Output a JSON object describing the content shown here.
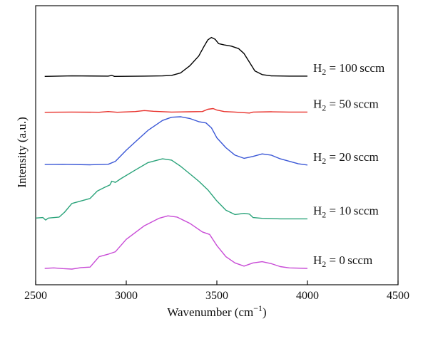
{
  "chart_data": {
    "type": "line",
    "title": "",
    "xlabel": "Wavenumber (cm−1)",
    "xlabel_main": "Wavenumber (cm",
    "xlabel_sup": "−1",
    "xlabel_close": ")",
    "ylabel": "Intensity (a.u.)",
    "xlim": [
      2500,
      4500
    ],
    "ylim": [
      0,
      1
    ],
    "xticks": [
      "2500",
      "3000",
      "3500",
      "4000",
      "4500"
    ],
    "yticks_shown": false,
    "grid": false,
    "legend": "labels at right end of each curve",
    "series": [
      {
        "name": "H2 = 100 sccm",
        "label_main": "H",
        "label_sub": "2",
        "label_rest": " = 100 sccm",
        "color": "#000000",
        "points": [
          [
            2550,
            0.778
          ],
          [
            2700,
            0.78
          ],
          [
            2900,
            0.779
          ],
          [
            2920,
            0.782
          ],
          [
            2935,
            0.778
          ],
          [
            3100,
            0.779
          ],
          [
            3200,
            0.78
          ],
          [
            3250,
            0.782
          ],
          [
            3300,
            0.792
          ],
          [
            3350,
            0.82
          ],
          [
            3400,
            0.86
          ],
          [
            3430,
            0.9
          ],
          [
            3450,
            0.925
          ],
          [
            3470,
            0.935
          ],
          [
            3490,
            0.928
          ],
          [
            3510,
            0.91
          ],
          [
            3540,
            0.905
          ],
          [
            3580,
            0.9
          ],
          [
            3620,
            0.89
          ],
          [
            3650,
            0.87
          ],
          [
            3680,
            0.835
          ],
          [
            3710,
            0.8
          ],
          [
            3750,
            0.785
          ],
          [
            3800,
            0.78
          ],
          [
            3900,
            0.779
          ],
          [
            4000,
            0.779
          ]
        ]
      },
      {
        "name": "H2 = 50 sccm",
        "label_main": "H",
        "label_sub": "2",
        "label_rest": " = 50 sccm",
        "color": "#e8302a",
        "points": [
          [
            2550,
            0.633
          ],
          [
            2700,
            0.634
          ],
          [
            2850,
            0.633
          ],
          [
            2900,
            0.636
          ],
          [
            2950,
            0.633
          ],
          [
            3050,
            0.636
          ],
          [
            3100,
            0.64
          ],
          [
            3150,
            0.637
          ],
          [
            3250,
            0.634
          ],
          [
            3350,
            0.635
          ],
          [
            3420,
            0.636
          ],
          [
            3450,
            0.645
          ],
          [
            3480,
            0.648
          ],
          [
            3500,
            0.642
          ],
          [
            3540,
            0.636
          ],
          [
            3600,
            0.634
          ],
          [
            3680,
            0.63
          ],
          [
            3700,
            0.634
          ],
          [
            3800,
            0.635
          ],
          [
            3900,
            0.634
          ],
          [
            4000,
            0.634
          ]
        ]
      },
      {
        "name": "H2 = 20 sccm",
        "label_main": "H",
        "label_sub": "2",
        "label_rest": " = 20 sccm",
        "color": "#3a57d6",
        "points": [
          [
            2550,
            0.422
          ],
          [
            2650,
            0.423
          ],
          [
            2800,
            0.421
          ],
          [
            2900,
            0.423
          ],
          [
            2940,
            0.435
          ],
          [
            3000,
            0.48
          ],
          [
            3060,
            0.52
          ],
          [
            3120,
            0.56
          ],
          [
            3200,
            0.6
          ],
          [
            3250,
            0.613
          ],
          [
            3300,
            0.615
          ],
          [
            3350,
            0.608
          ],
          [
            3400,
            0.595
          ],
          [
            3440,
            0.59
          ],
          [
            3470,
            0.57
          ],
          [
            3500,
            0.53
          ],
          [
            3550,
            0.49
          ],
          [
            3600,
            0.46
          ],
          [
            3650,
            0.447
          ],
          [
            3700,
            0.455
          ],
          [
            3750,
            0.465
          ],
          [
            3800,
            0.46
          ],
          [
            3850,
            0.445
          ],
          [
            3900,
            0.435
          ],
          [
            3950,
            0.425
          ],
          [
            4000,
            0.42
          ]
        ]
      },
      {
        "name": "H2 = 10 sccm",
        "label_main": "H",
        "label_sub": "2",
        "label_rest": " = 10 sccm",
        "color": "#2aa37a",
        "points": [
          [
            2500,
            0.206
          ],
          [
            2540,
            0.208
          ],
          [
            2555,
            0.198
          ],
          [
            2570,
            0.206
          ],
          [
            2630,
            0.21
          ],
          [
            2660,
            0.23
          ],
          [
            2700,
            0.265
          ],
          [
            2750,
            0.275
          ],
          [
            2800,
            0.285
          ],
          [
            2840,
            0.315
          ],
          [
            2880,
            0.33
          ],
          [
            2910,
            0.34
          ],
          [
            2920,
            0.355
          ],
          [
            2940,
            0.35
          ],
          [
            2970,
            0.365
          ],
          [
            3050,
            0.4
          ],
          [
            3120,
            0.43
          ],
          [
            3200,
            0.445
          ],
          [
            3250,
            0.44
          ],
          [
            3300,
            0.415
          ],
          [
            3350,
            0.385
          ],
          [
            3400,
            0.355
          ],
          [
            3450,
            0.32
          ],
          [
            3500,
            0.275
          ],
          [
            3550,
            0.238
          ],
          [
            3600,
            0.22
          ],
          [
            3650,
            0.225
          ],
          [
            3680,
            0.222
          ],
          [
            3700,
            0.208
          ],
          [
            3750,
            0.205
          ],
          [
            3850,
            0.203
          ],
          [
            4000,
            0.203
          ]
        ]
      },
      {
        "name": "H2 = 0 sccm",
        "label_main": "H",
        "label_sub": "2",
        "label_rest": " = 0 sccm",
        "color": "#c84bd6",
        "points": [
          [
            2550,
            0.003
          ],
          [
            2600,
            0.005
          ],
          [
            2650,
            0.002
          ],
          [
            2700,
            0.0
          ],
          [
            2750,
            0.006
          ],
          [
            2800,
            0.008
          ],
          [
            2850,
            0.05
          ],
          [
            2900,
            0.06
          ],
          [
            2940,
            0.07
          ],
          [
            3000,
            0.12
          ],
          [
            3100,
            0.175
          ],
          [
            3180,
            0.205
          ],
          [
            3230,
            0.215
          ],
          [
            3280,
            0.21
          ],
          [
            3350,
            0.185
          ],
          [
            3420,
            0.15
          ],
          [
            3460,
            0.14
          ],
          [
            3500,
            0.095
          ],
          [
            3550,
            0.05
          ],
          [
            3600,
            0.025
          ],
          [
            3650,
            0.012
          ],
          [
            3700,
            0.025
          ],
          [
            3750,
            0.03
          ],
          [
            3800,
            0.022
          ],
          [
            3850,
            0.01
          ],
          [
            3900,
            0.005
          ],
          [
            4000,
            0.003
          ]
        ]
      }
    ]
  }
}
